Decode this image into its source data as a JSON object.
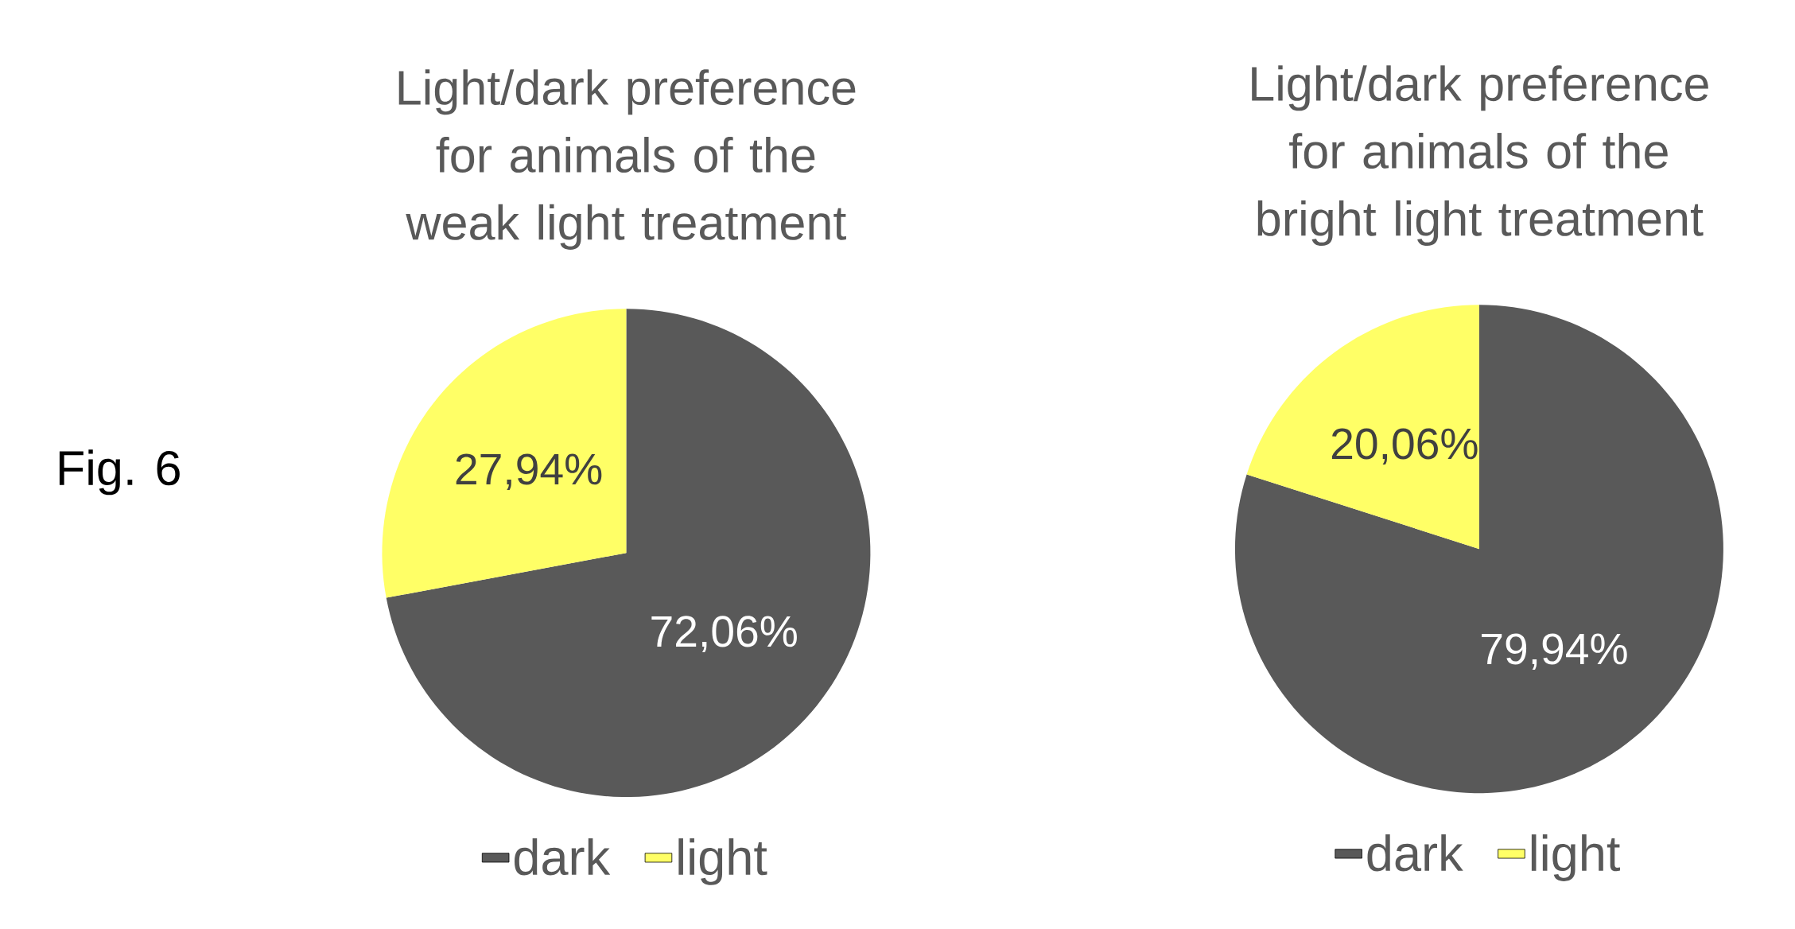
{
  "chart_data": [
    {
      "type": "pie",
      "title": "Light/dark preference for animals of the weak light treatment",
      "categories": [
        "dark",
        "light"
      ],
      "values": [
        72.06,
        27.94
      ],
      "colors": [
        "#595959",
        "#ffff66"
      ],
      "value_labels": [
        "72,06%",
        "27,94%"
      ],
      "legend": "bottom",
      "annotations": [
        "Fig. 6"
      ]
    },
    {
      "type": "pie",
      "title": "Light/dark preference for animals of the bright light treatment",
      "categories": [
        "dark",
        "light"
      ],
      "values": [
        79.94,
        20.06
      ],
      "colors": [
        "#595959",
        "#ffff66"
      ],
      "value_labels": [
        "79,94%",
        "20,06%"
      ],
      "legend": "bottom"
    }
  ]
}
